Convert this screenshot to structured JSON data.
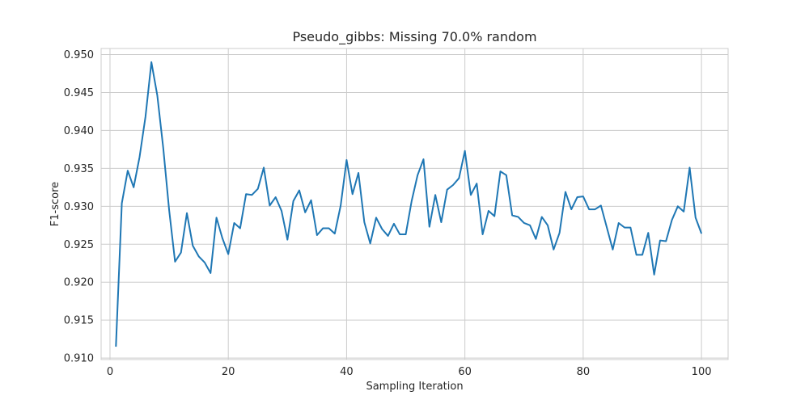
{
  "chart_data": {
    "type": "line",
    "title": "Pseudo_gibbs: Missing 70.0% random",
    "xlabel": "Sampling Iteration",
    "ylabel": "F1-score",
    "xlim": [
      -1.5,
      104.5
    ],
    "ylim": [
      0.9098,
      0.9508
    ],
    "xticks": [
      0,
      20,
      40,
      60,
      80,
      100
    ],
    "xtick_labels": [
      "0",
      "20",
      "40",
      "60",
      "80",
      "100"
    ],
    "yticks": [
      0.91,
      0.915,
      0.92,
      0.925,
      0.93,
      0.935,
      0.94,
      0.945,
      0.95
    ],
    "ytick_labels": [
      "0.910",
      "0.915",
      "0.920",
      "0.925",
      "0.930",
      "0.935",
      "0.940",
      "0.945",
      "0.950"
    ],
    "grid": true,
    "legend": "none",
    "series": [
      {
        "color": "#1f77b4",
        "x": [
          1,
          2,
          3,
          4,
          5,
          6,
          7,
          8,
          9,
          10,
          11,
          12,
          13,
          14,
          15,
          16,
          17,
          18,
          19,
          20,
          21,
          22,
          23,
          24,
          25,
          26,
          27,
          28,
          29,
          30,
          31,
          32,
          33,
          34,
          35,
          36,
          37,
          38,
          39,
          40,
          41,
          42,
          43,
          44,
          45,
          46,
          47,
          48,
          49,
          50,
          51,
          52,
          53,
          54,
          55,
          56,
          57,
          58,
          59,
          60,
          61,
          62,
          63,
          64,
          65,
          66,
          67,
          68,
          69,
          70,
          71,
          72,
          73,
          74,
          75,
          76,
          77,
          78,
          79,
          80,
          81,
          82,
          83,
          84,
          85,
          86,
          87,
          88,
          89,
          90,
          91,
          92,
          93,
          94,
          95,
          96,
          97,
          98,
          99,
          100
        ],
        "values": [
          0.9115,
          0.9304,
          0.9347,
          0.9325,
          0.9365,
          0.9418,
          0.949,
          0.9446,
          0.9377,
          0.9295,
          0.9227,
          0.9239,
          0.9291,
          0.9248,
          0.9234,
          0.9226,
          0.9212,
          0.9285,
          0.9258,
          0.9237,
          0.9278,
          0.9271,
          0.9316,
          0.9315,
          0.9323,
          0.9351,
          0.9301,
          0.9312,
          0.9294,
          0.9256,
          0.9307,
          0.9321,
          0.9292,
          0.9308,
          0.9262,
          0.9271,
          0.9271,
          0.9264,
          0.9301,
          0.9361,
          0.9316,
          0.9344,
          0.9279,
          0.9251,
          0.9285,
          0.927,
          0.9261,
          0.9277,
          0.9263,
          0.9263,
          0.9307,
          0.9341,
          0.9362,
          0.9273,
          0.9315,
          0.9279,
          0.9322,
          0.9328,
          0.9337,
          0.9373,
          0.9315,
          0.933,
          0.9263,
          0.9294,
          0.9287,
          0.9346,
          0.9341,
          0.9288,
          0.9286,
          0.9278,
          0.9275,
          0.9257,
          0.9286,
          0.9275,
          0.9243,
          0.9265,
          0.9319,
          0.9296,
          0.9312,
          0.9313,
          0.9296,
          0.9296,
          0.9301,
          0.9272,
          0.9243,
          0.9278,
          0.9272,
          0.9272,
          0.9236,
          0.9236,
          0.9265,
          0.921,
          0.9255,
          0.9254,
          0.9282,
          0.93,
          0.9293,
          0.9351,
          0.9285,
          0.9264
        ]
      }
    ]
  }
}
